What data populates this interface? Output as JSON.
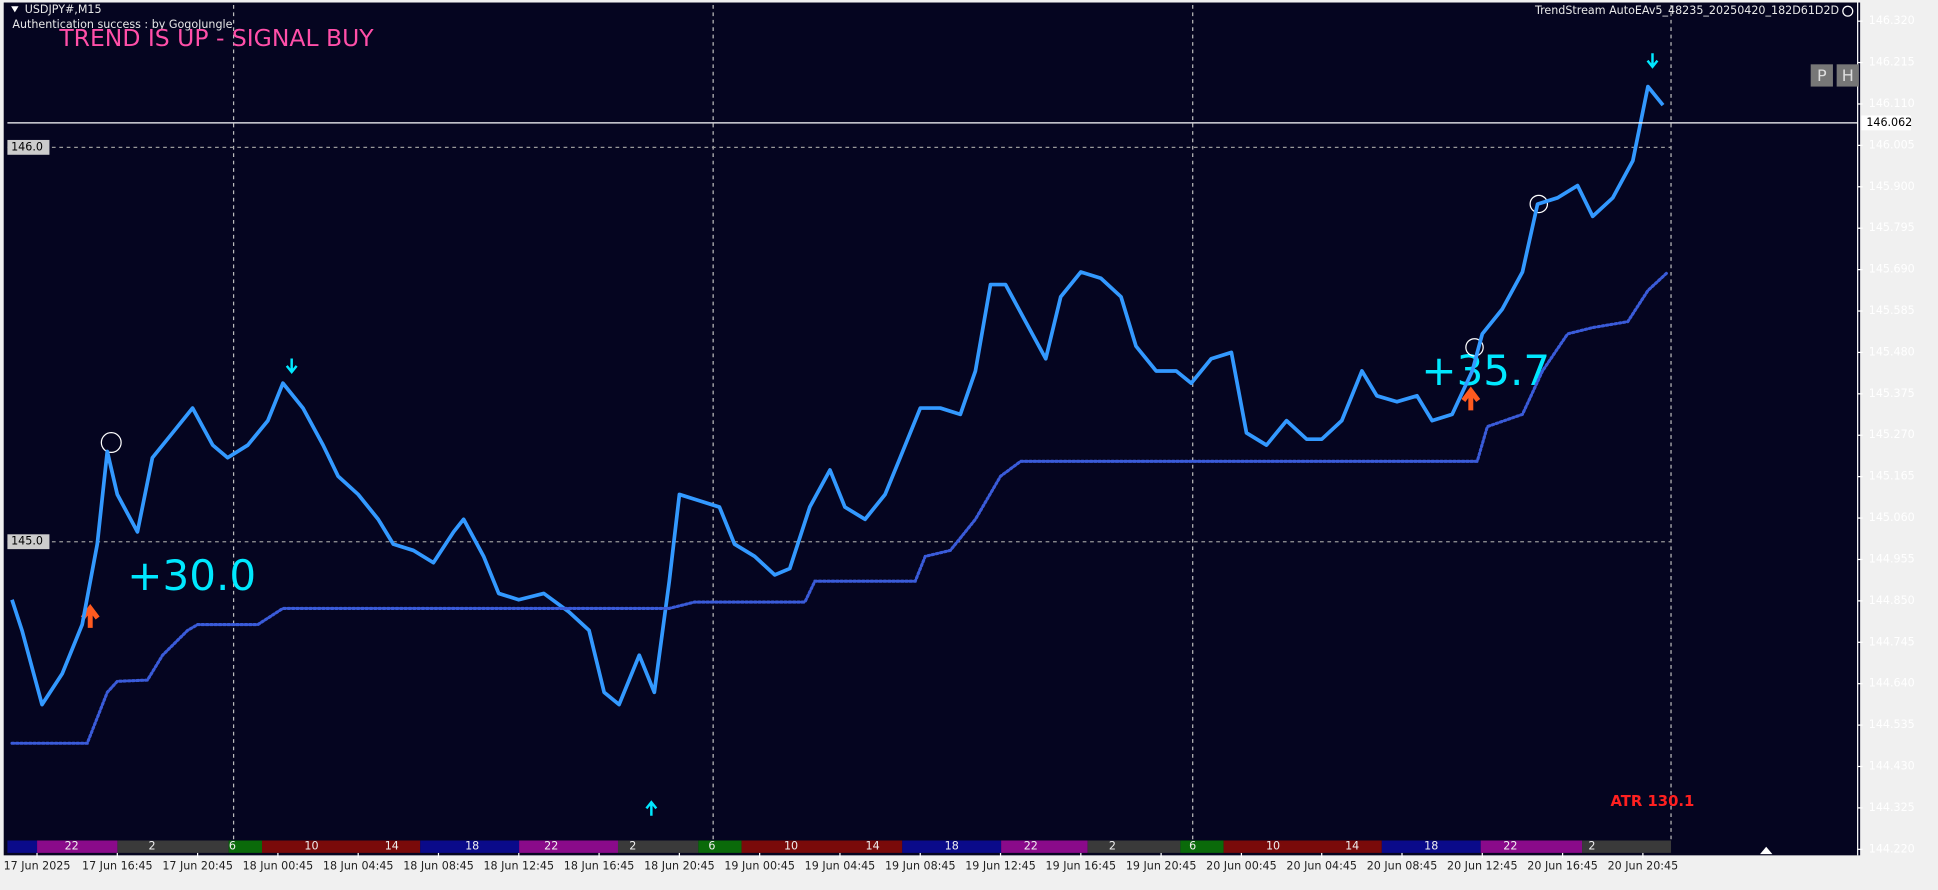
{
  "header": {
    "symbol": "USDJPY#,M15",
    "auth": "Authentication success : by GogoJungle",
    "ea_name": "TrendStream AutoEAv5_48235_20250420_182D61D2D",
    "buttons": [
      "P",
      "H"
    ]
  },
  "chart_data": {
    "type": "line",
    "title": "TREND IS UP - SIGNAL BUY",
    "annotations": [
      "+30.0",
      "+35.7",
      "ATR 130.1"
    ],
    "xlim": [
      -5.9,
      362.8
    ],
    "ylim": [
      144.211,
      146.361
    ],
    "grid": false,
    "xticks": [
      {
        "value": 0,
        "label": "17 Jun 2025"
      },
      {
        "value": 16,
        "label": "17 Jun 16:45"
      },
      {
        "value": 32,
        "label": "17 Jun 20:45"
      },
      {
        "value": 48,
        "label": "18 Jun 00:45"
      },
      {
        "value": 64,
        "label": "18 Jun 04:45"
      },
      {
        "value": 80,
        "label": "18 Jun 08:45"
      },
      {
        "value": 96,
        "label": "18 Jun 12:45"
      },
      {
        "value": 112,
        "label": "18 Jun 16:45"
      },
      {
        "value": 128,
        "label": "18 Jun 20:45"
      },
      {
        "value": 144,
        "label": "19 Jun 00:45"
      },
      {
        "value": 160,
        "label": "19 Jun 04:45"
      },
      {
        "value": 176,
        "label": "19 Jun 08:45"
      },
      {
        "value": 192,
        "label": "19 Jun 12:45"
      },
      {
        "value": 208,
        "label": "19 Jun 16:45"
      },
      {
        "value": 224,
        "label": "19 Jun 20:45"
      },
      {
        "value": 240,
        "label": "20 Jun 00:45"
      },
      {
        "value": 256,
        "label": "20 Jun 04:45"
      },
      {
        "value": 272,
        "label": "20 Jun 08:45"
      },
      {
        "value": 288,
        "label": "20 Jun 12:45"
      },
      {
        "value": 304,
        "label": "20 Jun 16:45"
      },
      {
        "value": 320,
        "label": "20 Jun 20:45"
      }
    ],
    "yticks": [
      {
        "value": 146.32,
        "label": "146.320"
      },
      146.215,
      {
        "value": 146.11,
        "label": "146.110"
      },
      146.005,
      {
        "value": 145.9,
        "label": "145.900"
      },
      145.795,
      {
        "value": 145.69,
        "label": "145.690"
      },
      145.585,
      {
        "value": 145.48,
        "label": "145.480"
      },
      145.375,
      {
        "value": 145.27,
        "label": "145.270"
      },
      145.165,
      {
        "value": 145.06,
        "label": "145.060"
      },
      144.955,
      {
        "value": 144.85,
        "label": "144.850"
      },
      144.745,
      {
        "value": 144.64,
        "label": "144.640"
      },
      144.535,
      {
        "value": 144.43,
        "label": "144.430"
      },
      144.325,
      {
        "value": 144.22,
        "label": "144.220"
      }
    ],
    "last_price": 146.062,
    "levels": [
      {
        "value": 146,
        "label": "146.0"
      },
      {
        "value": 145,
        "label": "145.0"
      }
    ],
    "session_labels": [
      "22",
      "2",
      "6",
      "10",
      "14",
      "18",
      "22",
      "2",
      "6",
      "10",
      "14",
      "18",
      "22",
      "2",
      "6",
      "10",
      "14",
      "18",
      "22",
      "2"
    ],
    "series": [
      {
        "color": "#3399ff",
        "x": [
          -5,
          -3,
          1,
          5,
          9,
          12,
          14,
          16,
          20,
          23,
          27,
          31,
          35,
          38,
          42,
          46,
          49,
          53,
          57,
          60,
          64,
          68,
          71,
          75,
          79,
          83,
          85,
          89,
          92,
          96,
          101,
          106,
          110,
          113,
          116,
          120,
          123,
          126,
          128,
          132,
          136,
          139,
          143,
          147,
          150,
          154,
          158,
          161,
          165,
          169,
          172,
          176,
          180,
          184,
          187,
          190,
          193,
          197,
          201,
          204,
          208,
          212,
          216,
          219,
          223,
          227,
          230,
          234,
          238,
          241,
          245,
          249,
          253,
          256,
          260,
          264,
          267,
          271,
          275,
          278,
          282,
          286,
          288,
          292,
          296,
          299,
          303,
          307,
          310,
          314,
          318,
          321,
          324
        ],
        "values": [
          144.853,
          144.775,
          144.587,
          144.665,
          144.79,
          144.994,
          145.229,
          145.12,
          145.025,
          145.213,
          145.276,
          145.339,
          145.245,
          145.213,
          145.245,
          145.307,
          145.402,
          145.339,
          145.245,
          145.166,
          145.12,
          145.057,
          144.994,
          144.978,
          144.947,
          145.025,
          145.057,
          144.963,
          144.869,
          144.853,
          144.869,
          144.822,
          144.775,
          144.618,
          144.587,
          144.712,
          144.618,
          144.9,
          145.12,
          145.104,
          145.088,
          144.994,
          144.963,
          144.916,
          144.932,
          145.088,
          145.182,
          145.088,
          145.057,
          145.12,
          145.213,
          145.339,
          145.339,
          145.323,
          145.433,
          145.652,
          145.652,
          145.558,
          145.464,
          145.621,
          145.684,
          145.668,
          145.621,
          145.496,
          145.433,
          145.433,
          145.402,
          145.464,
          145.48,
          145.276,
          145.245,
          145.307,
          145.26,
          145.26,
          145.307,
          145.433,
          145.37,
          145.355,
          145.37,
          145.307,
          145.323,
          145.433,
          145.527,
          145.59,
          145.684,
          145.856,
          145.872,
          145.903,
          145.825,
          145.872,
          145.966,
          146.154,
          146.107
        ]
      },
      {
        "color": "#3a5bd9",
        "x": [
          -5,
          10,
          14,
          16,
          22,
          25,
          30,
          32,
          44,
          49,
          126,
          131,
          153,
          155,
          175,
          177,
          182,
          187,
          192,
          196,
          287,
          289,
          296,
          300,
          305,
          310,
          317,
          321,
          325
        ],
        "values": [
          144.489,
          144.489,
          144.618,
          144.646,
          144.649,
          144.712,
          144.775,
          144.79,
          144.79,
          144.831,
          144.831,
          144.847,
          144.847,
          144.9,
          144.9,
          144.963,
          144.978,
          145.057,
          145.166,
          145.204,
          145.204,
          145.292,
          145.323,
          145.433,
          145.527,
          145.543,
          145.558,
          145.637,
          145.684
        ]
      }
    ]
  }
}
